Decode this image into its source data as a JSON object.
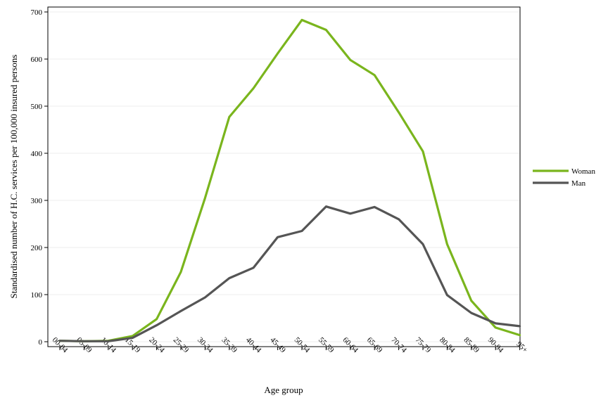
{
  "chart_data": {
    "type": "line",
    "title": "",
    "xlabel": "Age group",
    "ylabel": "Standardised number of H.C. services per 100,000 insured persons",
    "categories": [
      "00-04",
      "05-09",
      "10-14",
      "15-19",
      "20-24",
      "25-29",
      "30-34",
      "35-39",
      "40-44",
      "45-49",
      "50-54",
      "55-59",
      "60-64",
      "65-69",
      "70-74",
      "75-79",
      "80-84",
      "85-89",
      "90-94",
      "95+"
    ],
    "ylim": [
      0,
      700
    ],
    "yticks": [
      "0",
      "100",
      "200",
      "300",
      "400",
      "500",
      "600",
      "700"
    ],
    "grid": true,
    "legend_position": "right",
    "series": [
      {
        "name": "Woman",
        "color": "#7ab51d",
        "values": [
          2,
          1,
          2,
          12,
          48,
          148,
          305,
          477,
          538,
          612,
          683,
          662,
          598,
          566,
          487,
          404,
          207,
          87,
          30,
          14
        ]
      },
      {
        "name": "Man",
        "color": "#555555",
        "values": [
          2,
          1,
          1,
          8,
          35,
          65,
          94,
          135,
          157,
          222,
          235,
          287,
          272,
          286,
          260,
          207,
          99,
          61,
          39,
          33
        ]
      }
    ]
  }
}
